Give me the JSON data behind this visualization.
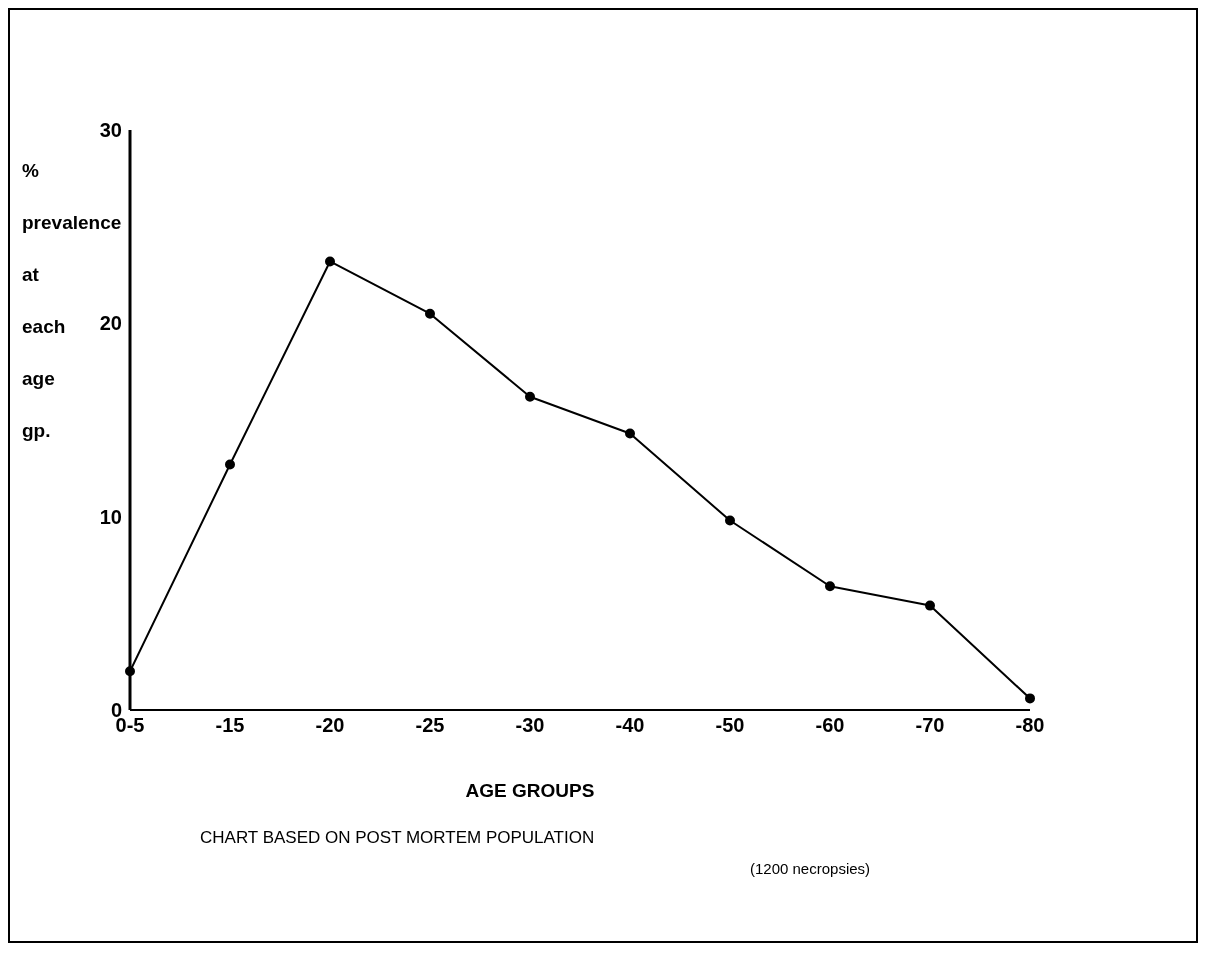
{
  "chart_data": {
    "type": "line",
    "xlabel": "AGE GROUPS",
    "ylabel": "% prevalence at each age gp.",
    "categories": [
      "0-5",
      "-15",
      "-20",
      "-25",
      "-30",
      "-40",
      "-50",
      "-60",
      "-70",
      "-80"
    ],
    "series": [
      {
        "color": "#000000",
        "values": [
          2,
          12.7,
          23.2,
          20.5,
          16.2,
          14.3,
          9.8,
          6.4,
          5.4,
          0.6
        ]
      }
    ],
    "ylim": [
      0,
      30
    ],
    "yticks": [
      0,
      10,
      20,
      30
    ],
    "grid": false,
    "legend": false,
    "marker": "circle",
    "line_style": "solid",
    "annotations": [
      "CHART BASED ON POST MORTEM POPULATION",
      "(1200 necropsies)"
    ]
  }
}
